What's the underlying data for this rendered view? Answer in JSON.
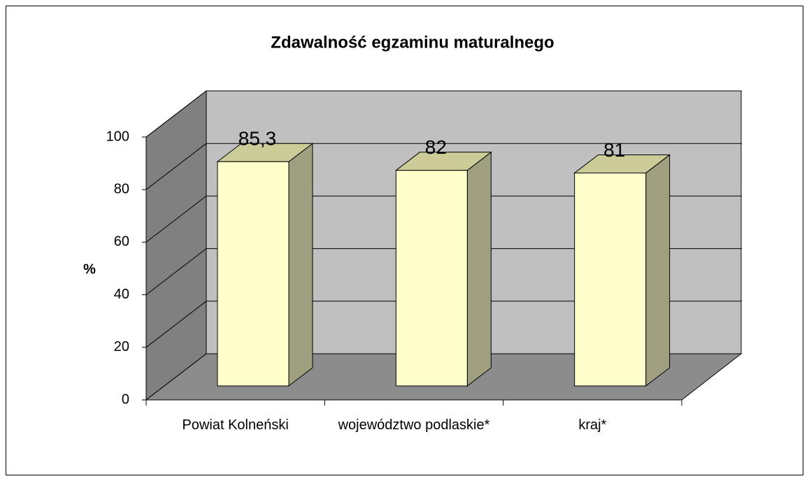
{
  "chart_data": {
    "type": "bar3d",
    "title": "Zdawalność egzaminu maturalnego",
    "ylabel": "%",
    "categories": [
      "Powiat Kolneński",
      "województwo podlaskie*",
      "kraj*"
    ],
    "values": [
      85.3,
      82,
      81
    ],
    "value_labels": [
      "85,3",
      "82",
      "81"
    ],
    "color": "#ffffcc",
    "ylim": [
      0,
      100
    ],
    "yticks": [
      0,
      20,
      40,
      60,
      80,
      100
    ],
    "grid": true
  }
}
